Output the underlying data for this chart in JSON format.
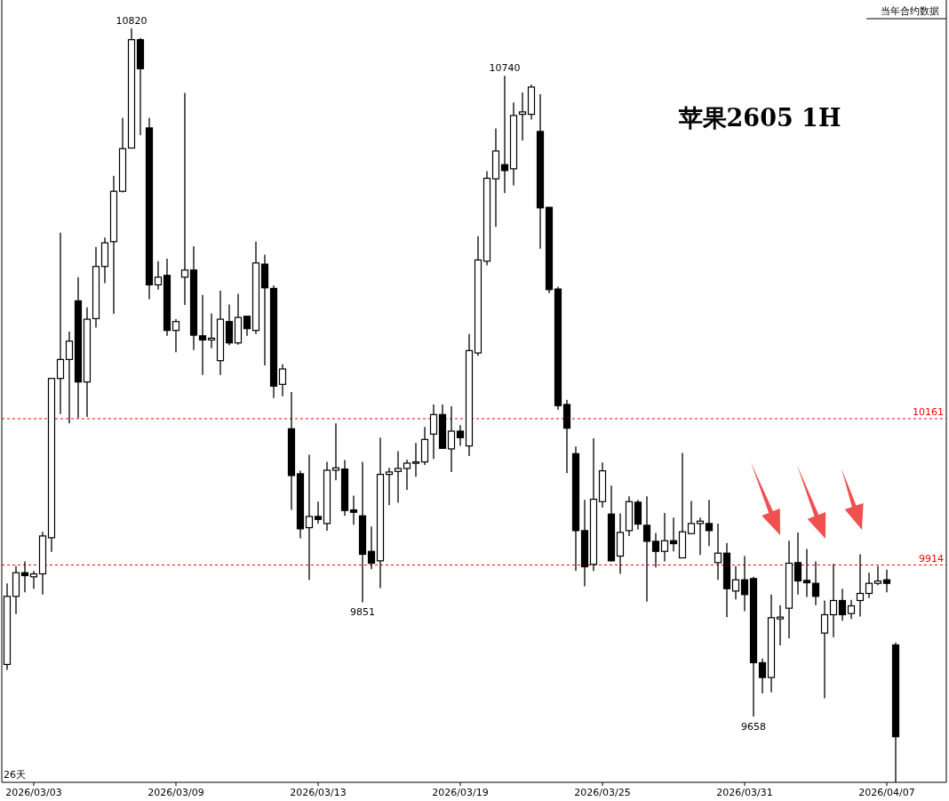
{
  "chart_data": {
    "type": "candlestick",
    "title": "苹果2605 1H",
    "subtitle": "当年合约数据",
    "annotations": [
      "26天",
      {
        "text": "10820",
        "y": 10820
      },
      {
        "text": "10740",
        "y": 10740
      },
      {
        "text": "9851",
        "y": 9851
      },
      {
        "text": "9658",
        "y": 9658
      }
    ],
    "ylim": [
      9547,
      10868
    ],
    "tick_labels": "x",
    "ref_lines": [
      {
        "axis": "y",
        "value": 10161,
        "label": "10161",
        "color": "#ff0000",
        "line_style": "dashed"
      },
      {
        "axis": "y",
        "value": 9914,
        "label": "9914",
        "color": "#ff0000",
        "line_style": "dashed"
      }
    ],
    "categories": [
      null,
      null,
      null,
      "2026/03/03",
      null,
      null,
      null,
      null,
      null,
      null,
      null,
      null,
      null,
      null,
      null,
      null,
      null,
      null,
      null,
      "2026/03/09",
      null,
      null,
      null,
      null,
      null,
      null,
      null,
      null,
      null,
      null,
      null,
      null,
      null,
      null,
      null,
      "2026/03/13",
      null,
      null,
      null,
      null,
      null,
      null,
      null,
      null,
      null,
      null,
      null,
      null,
      null,
      null,
      null,
      "2026/03/19",
      null,
      null,
      null,
      null,
      null,
      null,
      null,
      null,
      null,
      null,
      null,
      null,
      null,
      null,
      null,
      "2026/03/25",
      null,
      null,
      null,
      null,
      null,
      null,
      null,
      null,
      null,
      null,
      null,
      null,
      null,
      null,
      null,
      "2026/03/31",
      null,
      null,
      null,
      null,
      null,
      null,
      null,
      null,
      null,
      null,
      null,
      null,
      null,
      null,
      null,
      "2026/04/07",
      null
    ],
    "ohlc": [
      [
        9746,
        9883,
        9737,
        9861
      ],
      [
        9861,
        9912,
        9831,
        9901
      ],
      [
        9901,
        9920,
        9868,
        9896
      ],
      [
        9894,
        9904,
        9874,
        9899
      ],
      [
        9899,
        9970,
        9864,
        9963
      ],
      [
        9960,
        10229,
        9936,
        10229
      ],
      [
        10229,
        10475,
        10169,
        10261
      ],
      [
        10261,
        10308,
        10153,
        10292
      ],
      [
        10360,
        10400,
        10162,
        10223
      ],
      [
        10223,
        10349,
        10164,
        10329
      ],
      [
        10330,
        10451,
        10315,
        10418
      ],
      [
        10418,
        10467,
        10390,
        10458
      ],
      [
        10460,
        10571,
        10338,
        10545
      ],
      [
        10545,
        10669,
        10543,
        10617
      ],
      [
        10618,
        10820,
        10618,
        10801
      ],
      [
        10801,
        10804,
        10640,
        10752
      ],
      [
        10652,
        10669,
        10363,
        10387
      ],
      [
        10387,
        10427,
        10379,
        10400
      ],
      [
        10403,
        10431,
        10301,
        10310
      ],
      [
        10310,
        10329,
        10273,
        10325
      ],
      [
        10400,
        10711,
        10353,
        10412
      ],
      [
        10412,
        10452,
        10277,
        10302
      ],
      [
        10301,
        10370,
        10235,
        10294
      ],
      [
        10294,
        10339,
        10280,
        10297
      ],
      [
        10259,
        10377,
        10235,
        10329
      ],
      [
        10325,
        10354,
        10285,
        10289
      ],
      [
        10289,
        10372,
        10286,
        10332
      ],
      [
        10334,
        10334,
        10301,
        10313
      ],
      [
        10310,
        10460,
        10304,
        10424
      ],
      [
        10422,
        10438,
        10251,
        10382
      ],
      [
        10381,
        10386,
        10196,
        10216
      ],
      [
        10219,
        10253,
        10199,
        10245
      ],
      [
        10144,
        10206,
        10007,
        10065
      ],
      [
        10068,
        10073,
        9959,
        9975
      ],
      [
        9977,
        10100,
        9889,
        9996
      ],
      [
        9996,
        10021,
        9984,
        9991
      ],
      [
        9984,
        10088,
        9972,
        10074
      ],
      [
        10074,
        10153,
        10057,
        10078
      ],
      [
        10076,
        10091,
        9997,
        10006
      ],
      [
        10007,
        10031,
        9982,
        10003
      ],
      [
        9997,
        10088,
        9851,
        9932
      ],
      [
        9937,
        9979,
        9907,
        9917
      ],
      [
        9921,
        10129,
        9875,
        10067
      ],
      [
        10067,
        10078,
        10015,
        10071
      ],
      [
        10072,
        10106,
        10019,
        10077
      ],
      [
        10077,
        10092,
        10041,
        10086
      ],
      [
        10086,
        10120,
        10063,
        10088
      ],
      [
        10088,
        10147,
        10083,
        10126
      ],
      [
        10135,
        10185,
        10093,
        10168
      ],
      [
        10168,
        10185,
        10111,
        10111
      ],
      [
        10110,
        10182,
        10071,
        10140
      ],
      [
        10140,
        10150,
        10115,
        10129
      ],
      [
        10115,
        10304,
        10098,
        10276
      ],
      [
        10272,
        10469,
        10267,
        10429
      ],
      [
        10427,
        10579,
        10420,
        10567
      ],
      [
        10566,
        10651,
        10485,
        10613
      ],
      [
        10590,
        10740,
        10542,
        10580
      ],
      [
        10583,
        10695,
        10555,
        10673
      ],
      [
        10675,
        10712,
        10631,
        10679
      ],
      [
        10675,
        10725,
        10666,
        10721
      ],
      [
        10646,
        10709,
        10448,
        10517
      ],
      [
        10518,
        10518,
        10373,
        10379
      ],
      [
        10380,
        10384,
        10176,
        10183
      ],
      [
        10185,
        10193,
        10069,
        10145
      ],
      [
        10102,
        10114,
        9904,
        9972
      ],
      [
        9972,
        10024,
        9878,
        9911
      ],
      [
        9915,
        10128,
        9904,
        10025
      ],
      [
        10021,
        10087,
        10011,
        10073
      ],
      [
        10000,
        10048,
        9920,
        9921
      ],
      [
        9929,
        10001,
        9899,
        9969
      ],
      [
        9972,
        10030,
        9963,
        10021
      ],
      [
        10020,
        10024,
        9974,
        9983
      ],
      [
        9981,
        10030,
        9852,
        9954
      ],
      [
        9954,
        9968,
        9910,
        9937
      ],
      [
        9937,
        10002,
        9920,
        9955
      ],
      [
        9955,
        9994,
        9937,
        9950
      ],
      [
        9926,
        10103,
        9926,
        9970
      ],
      [
        9967,
        10022,
        9967,
        9984
      ],
      [
        9984,
        9994,
        9931,
        9988
      ],
      [
        9984,
        10024,
        9946,
        9972
      ],
      [
        9918,
        9984,
        9889,
        9934
      ],
      [
        9934,
        9951,
        9826,
        9874
      ],
      [
        9870,
        9912,
        9856,
        9889
      ],
      [
        9889,
        9929,
        9836,
        9864
      ],
      [
        9891,
        9894,
        9658,
        9749
      ],
      [
        9749,
        9756,
        9697,
        9724
      ],
      [
        9724,
        9864,
        9699,
        9825
      ],
      [
        9823,
        9846,
        9778,
        9826
      ],
      [
        9841,
        9955,
        9790,
        9917
      ],
      [
        9918,
        9969,
        9864,
        9887
      ],
      [
        9888,
        9941,
        9860,
        9884
      ],
      [
        9883,
        9920,
        9846,
        9861
      ],
      [
        9799,
        9854,
        9689,
        9830
      ],
      [
        9830,
        9916,
        9792,
        9854
      ],
      [
        9854,
        9874,
        9820,
        9830
      ],
      [
        9832,
        9855,
        9823,
        9845
      ],
      [
        9854,
        9932,
        9827,
        9866
      ],
      [
        9866,
        9901,
        9858,
        9883
      ],
      [
        9883,
        9912,
        9880,
        9887
      ],
      [
        9889,
        9906,
        9868,
        9883
      ],
      [
        9779,
        9783,
        9547,
        9624
      ]
    ]
  }
}
